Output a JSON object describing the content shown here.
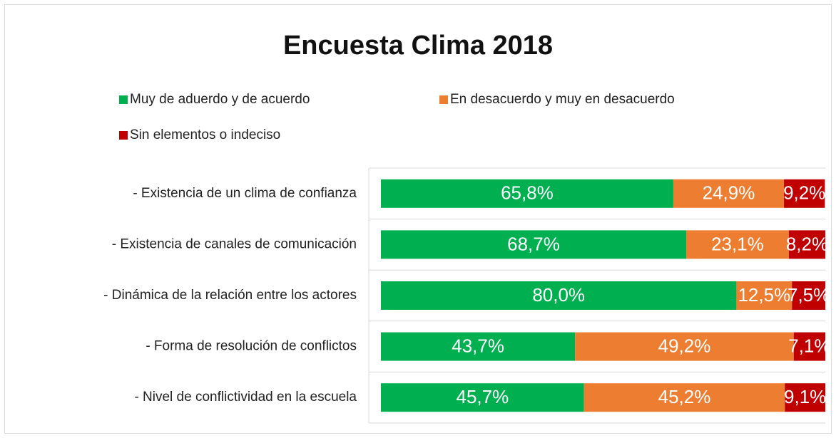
{
  "chart_data": {
    "type": "stacked_bar_horizontal",
    "title": "Encuesta Clima 2018",
    "categories": [
      "- Existencia de un clima de confianza",
      "- Existencia de canales de comunicación",
      "- Dinámica de la relación entre los actores",
      "- Forma de resolución de conflictos",
      "- Nivel de conflictividad en la escuela"
    ],
    "series": [
      {
        "name": "Muy de aduerdo y de acuerdo",
        "color": "#00b050",
        "values": [
          65.8,
          68.7,
          80.0,
          43.7,
          45.7
        ],
        "value_labels": [
          "65,8%",
          "68,7%",
          "80,0%",
          "43,7%",
          "45,7%"
        ]
      },
      {
        "name": "En desacuerdo y muy en desacuerdo",
        "color": "#ed7d31",
        "values": [
          24.9,
          23.1,
          12.5,
          49.2,
          45.2
        ],
        "value_labels": [
          "24,9%",
          "23,1%",
          "12,5%",
          "49,2%",
          "45,2%"
        ]
      },
      {
        "name": "Sin elementos o indeciso",
        "color": "#c00000",
        "values": [
          9.2,
          8.2,
          7.5,
          7.1,
          9.1
        ],
        "value_labels": [
          "9,2%",
          "8,2%",
          "7,5%",
          "7,1%",
          "9,1%"
        ]
      }
    ],
    "xlim": [
      0,
      100
    ],
    "legend": "top"
  }
}
